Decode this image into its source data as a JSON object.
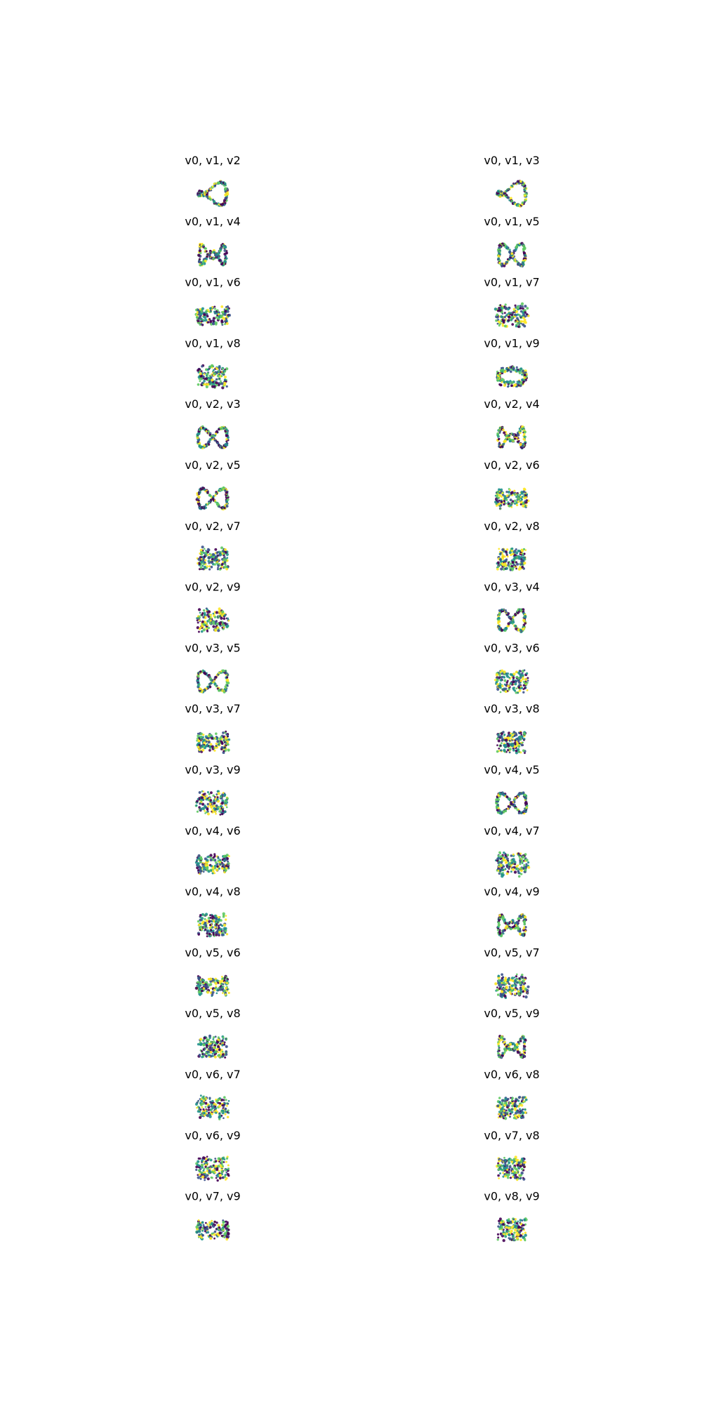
{
  "chart_data": {
    "type": "scatter",
    "layout": "grid of 3D scatter projections, 2 columns x 18 rows",
    "colormap": "viridis",
    "axes_visible": false,
    "grid": false,
    "colors": [
      "#440154",
      "#3b528b",
      "#21918c",
      "#5ec962",
      "#fde725"
    ],
    "panels": [
      {
        "title": "v0, v1, v2",
        "axes": [
          "v0",
          "v1",
          "v2"
        ],
        "shape": "loop"
      },
      {
        "title": "v0, v1, v3",
        "axes": [
          "v0",
          "v1",
          "v3"
        ],
        "shape": "loop"
      },
      {
        "title": "v0, v1, v4",
        "axes": [
          "v0",
          "v1",
          "v4"
        ],
        "shape": "zigzag"
      },
      {
        "title": "v0, v1, v5",
        "axes": [
          "v0",
          "v1",
          "v5"
        ],
        "shape": "bowtie"
      },
      {
        "title": "v0, v1, v6",
        "axes": [
          "v0",
          "v1",
          "v6"
        ],
        "shape": "wave"
      },
      {
        "title": "v0, v1, v7",
        "axes": [
          "v0",
          "v1",
          "v7"
        ],
        "shape": "blob"
      },
      {
        "title": "v0, v1, v8",
        "axes": [
          "v0",
          "v1",
          "v8"
        ],
        "shape": "block"
      },
      {
        "title": "v0, v1, v9",
        "axes": [
          "v0",
          "v1",
          "v9"
        ],
        "shape": "ring"
      },
      {
        "title": "v0, v2, v3",
        "axes": [
          "v0",
          "v2",
          "v3"
        ],
        "shape": "figure8"
      },
      {
        "title": "v0, v2, v4",
        "axes": [
          "v0",
          "v2",
          "v4"
        ],
        "shape": "zigzag"
      },
      {
        "title": "v0, v2, v5",
        "axes": [
          "v0",
          "v2",
          "v5"
        ],
        "shape": "figure8"
      },
      {
        "title": "v0, v2, v6",
        "axes": [
          "v0",
          "v2",
          "v6"
        ],
        "shape": "wave"
      },
      {
        "title": "v0, v2, v7",
        "axes": [
          "v0",
          "v2",
          "v7"
        ],
        "shape": "blob"
      },
      {
        "title": "v0, v2, v8",
        "axes": [
          "v0",
          "v2",
          "v8"
        ],
        "shape": "block"
      },
      {
        "title": "v0, v2, v9",
        "axes": [
          "v0",
          "v2",
          "v9"
        ],
        "shape": "blob"
      },
      {
        "title": "v0, v3, v4",
        "axes": [
          "v0",
          "v3",
          "v4"
        ],
        "shape": "bowtie"
      },
      {
        "title": "v0, v3, v5",
        "axes": [
          "v0",
          "v3",
          "v5"
        ],
        "shape": "figure8"
      },
      {
        "title": "v0, v3, v6",
        "axes": [
          "v0",
          "v3",
          "v6"
        ],
        "shape": "blob"
      },
      {
        "title": "v0, v3, v7",
        "axes": [
          "v0",
          "v3",
          "v7"
        ],
        "shape": "wave"
      },
      {
        "title": "v0, v3, v8",
        "axes": [
          "v0",
          "v3",
          "v8"
        ],
        "shape": "block"
      },
      {
        "title": "v0, v3, v9",
        "axes": [
          "v0",
          "v3",
          "v9"
        ],
        "shape": "blob"
      },
      {
        "title": "v0, v4, v5",
        "axes": [
          "v0",
          "v4",
          "v5"
        ],
        "shape": "figure8"
      },
      {
        "title": "v0, v4, v6",
        "axes": [
          "v0",
          "v4",
          "v6"
        ],
        "shape": "wave"
      },
      {
        "title": "v0, v4, v7",
        "axes": [
          "v0",
          "v4",
          "v7"
        ],
        "shape": "blob"
      },
      {
        "title": "v0, v4, v8",
        "axes": [
          "v0",
          "v4",
          "v8"
        ],
        "shape": "block"
      },
      {
        "title": "v0, v4, v9",
        "axes": [
          "v0",
          "v4",
          "v9"
        ],
        "shape": "zigzag"
      },
      {
        "title": "v0, v5, v6",
        "axes": [
          "v0",
          "v5",
          "v6"
        ],
        "shape": "wave"
      },
      {
        "title": "v0, v5, v7",
        "axes": [
          "v0",
          "v5",
          "v7"
        ],
        "shape": "blob"
      },
      {
        "title": "v0, v5, v8",
        "axes": [
          "v0",
          "v5",
          "v8"
        ],
        "shape": "block"
      },
      {
        "title": "v0, v5, v9",
        "axes": [
          "v0",
          "v5",
          "v9"
        ],
        "shape": "zigzag"
      },
      {
        "title": "v0, v6, v7",
        "axes": [
          "v0",
          "v6",
          "v7"
        ],
        "shape": "blob"
      },
      {
        "title": "v0, v6, v8",
        "axes": [
          "v0",
          "v6",
          "v8"
        ],
        "shape": "block"
      },
      {
        "title": "v0, v6, v9",
        "axes": [
          "v0",
          "v6",
          "v9"
        ],
        "shape": "blob"
      },
      {
        "title": "v0, v7, v8",
        "axes": [
          "v0",
          "v7",
          "v8"
        ],
        "shape": "block"
      },
      {
        "title": "v0, v7, v9",
        "axes": [
          "v0",
          "v7",
          "v9"
        ],
        "shape": "wave"
      },
      {
        "title": "v0, v8, v9",
        "axes": [
          "v0",
          "v8",
          "v9"
        ],
        "shape": "block"
      }
    ]
  }
}
